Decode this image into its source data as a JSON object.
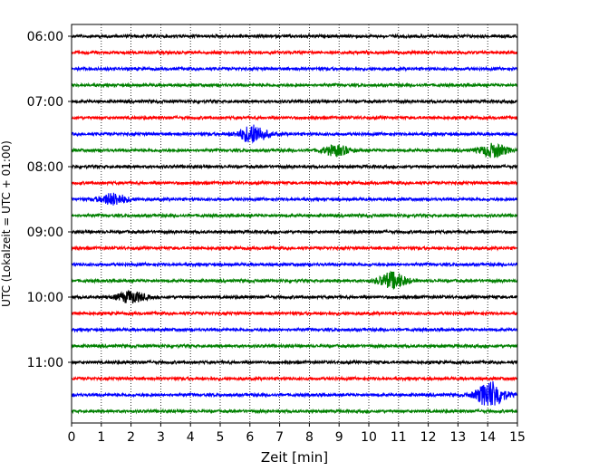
{
  "chart_data": {
    "type": "line",
    "title": "",
    "xlabel": "Zeit  [min]",
    "ylabel": "UTC (Lokalzeit = UTC + 01:00)",
    "xlim": [
      0,
      15
    ],
    "x_ticks": [
      "0",
      "1",
      "2",
      "3",
      "4",
      "5",
      "6",
      "7",
      "8",
      "9",
      "10",
      "11",
      "12",
      "13",
      "14",
      "15"
    ],
    "y_tick_labels": [
      "06:00",
      "07:00",
      "08:00",
      "09:00",
      "10:00",
      "11:00"
    ],
    "trace_interval_minutes": 15,
    "grid": "vertical dotted lines at each minute",
    "color_cycle": [
      "#000000",
      "#ff0000",
      "#0000ff",
      "#008000"
    ],
    "series": [
      {
        "start": "06:00",
        "color": "#000000"
      },
      {
        "start": "06:15",
        "color": "#ff0000"
      },
      {
        "start": "06:30",
        "color": "#0000ff"
      },
      {
        "start": "06:45",
        "color": "#008000"
      },
      {
        "start": "07:00",
        "color": "#000000"
      },
      {
        "start": "07:15",
        "color": "#ff0000"
      },
      {
        "start": "07:30",
        "color": "#0000ff",
        "events": [
          {
            "center_min": 6.1,
            "rel_amplitude": 0.55
          }
        ]
      },
      {
        "start": "07:45",
        "color": "#008000",
        "events": [
          {
            "center_min": 8.9,
            "rel_amplitude": 0.3
          },
          {
            "center_min": 14.2,
            "rel_amplitude": 0.4
          }
        ]
      },
      {
        "start": "08:00",
        "color": "#000000"
      },
      {
        "start": "08:15",
        "color": "#ff0000"
      },
      {
        "start": "08:30",
        "color": "#0000ff",
        "events": [
          {
            "center_min": 1.4,
            "rel_amplitude": 0.35
          }
        ]
      },
      {
        "start": "08:45",
        "color": "#008000"
      },
      {
        "start": "09:00",
        "color": "#000000"
      },
      {
        "start": "09:15",
        "color": "#ff0000"
      },
      {
        "start": "09:30",
        "color": "#0000ff"
      },
      {
        "start": "09:45",
        "color": "#008000",
        "events": [
          {
            "center_min": 10.8,
            "rel_amplitude": 0.5
          }
        ]
      },
      {
        "start": "10:00",
        "color": "#000000",
        "events": [
          {
            "center_min": 2.0,
            "rel_amplitude": 0.35
          }
        ]
      },
      {
        "start": "10:15",
        "color": "#ff0000"
      },
      {
        "start": "10:30",
        "color": "#0000ff"
      },
      {
        "start": "10:45",
        "color": "#008000"
      },
      {
        "start": "11:00",
        "color": "#000000"
      },
      {
        "start": "11:15",
        "color": "#ff0000"
      },
      {
        "start": "11:30",
        "color": "#0000ff",
        "events": [
          {
            "center_min": 14.1,
            "rel_amplitude": 0.8
          }
        ]
      },
      {
        "start": "11:45",
        "color": "#008000"
      }
    ]
  }
}
